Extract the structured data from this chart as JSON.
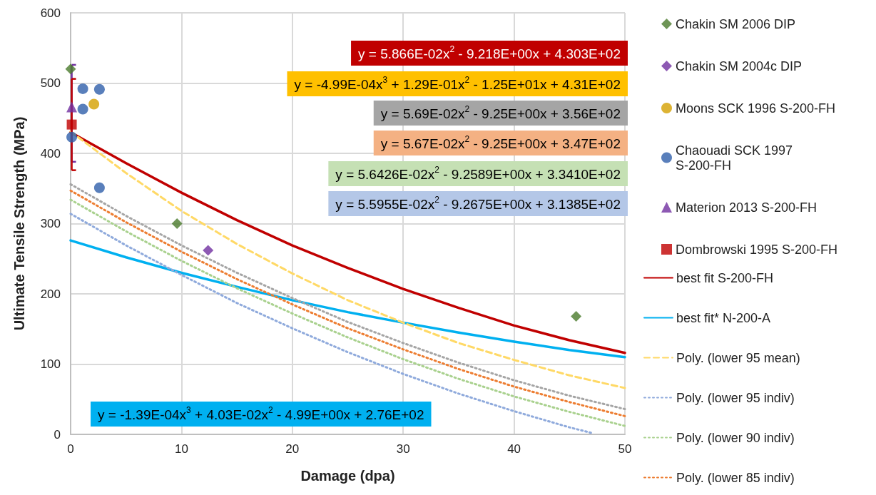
{
  "chart_data": {
    "type": "line",
    "xlabel": "Damage (dpa)",
    "ylabel": "Ultimate Tensile Strength (MPa)",
    "xlim": [
      0,
      50
    ],
    "xticks": [
      0,
      10,
      20,
      30,
      40,
      50
    ],
    "ylim": [
      0,
      600
    ],
    "yticks": [
      0,
      100,
      200,
      300,
      400,
      500,
      600
    ],
    "grid": true,
    "legend": "right",
    "series": [
      {
        "name": "Chakin SM 2006 DIP",
        "type": "scatter",
        "marker": "diamond",
        "color": "#4a7a2c",
        "x": [
          0,
          9.6,
          45.6
        ],
        "values": [
          520,
          300,
          168
        ]
      },
      {
        "name": "Chakin SM 2004c DIP",
        "type": "scatter",
        "marker": "diamond",
        "color": "#7030a0",
        "x": [
          12.4
        ],
        "values": [
          262
        ]
      },
      {
        "name": "Moons SCK 1996 S-200-FH",
        "type": "scatter",
        "marker": "circle",
        "color": "#d4a000",
        "x": [
          2.1
        ],
        "values": [
          470
        ]
      },
      {
        "name": "Chaouadi SCK 1997 S-200-FH",
        "type": "scatter",
        "marker": "circle",
        "color": "#2f5faa",
        "x": [
          1.1,
          2.6,
          1.1,
          0.1,
          2.6
        ],
        "values": [
          492,
          491,
          463,
          423,
          351
        ]
      },
      {
        "name": "Materion 2013 S-200-FH",
        "type": "scatter",
        "marker": "triangle",
        "color": "#7030a0",
        "x": [
          0.1
        ],
        "values": [
          466
        ],
        "errors": [
          [
            388,
            526
          ]
        ]
      },
      {
        "name": "Dombrowski 1995 S-200-FH",
        "type": "scatter",
        "marker": "square",
        "color": "#c00000",
        "x": [
          0.1
        ],
        "values": [
          441
        ],
        "errors": [
          [
            376,
            506
          ]
        ]
      },
      {
        "name": "best fit S-200-FH",
        "marker": "none",
        "line_style": "solid",
        "color": "#c00000",
        "x": [
          0,
          5,
          10,
          15,
          20,
          25,
          30,
          35,
          40,
          45,
          50
        ],
        "values": [
          430,
          386,
          344,
          305,
          269,
          237,
          207,
          180,
          155,
          134,
          116
        ]
      },
      {
        "name": "best fit* N-200-A",
        "marker": "none",
        "line_style": "solid",
        "color": "#00b0f0",
        "x": [
          0,
          5,
          10,
          15,
          20,
          25,
          30,
          35,
          40,
          45,
          50
        ],
        "values": [
          276,
          252,
          230,
          210,
          191,
          174,
          159,
          145,
          132,
          120,
          110
        ]
      },
      {
        "name": "Poly. (lower 95 mean)",
        "marker": "none",
        "line_style": "dashed",
        "color": "#ffd966",
        "x": [
          0,
          5,
          10,
          15,
          20,
          25,
          30,
          35,
          40,
          45,
          50
        ],
        "values": [
          431,
          372,
          318,
          271,
          229,
          191,
          159,
          130,
          106,
          84,
          66
        ]
      },
      {
        "name": "Poly. (lower 95 indiv)",
        "marker": "none",
        "line_style": "dotted",
        "color": "#8faadc",
        "x": [
          0,
          5,
          10,
          15,
          20,
          25,
          30,
          35,
          40,
          45,
          47
        ],
        "values": [
          314,
          269,
          227,
          187,
          151,
          117,
          86,
          58,
          33,
          10,
          2
        ]
      },
      {
        "name": "Poly. (lower 90 indiv)",
        "marker": "none",
        "line_style": "dotted",
        "color": "#a9d18e",
        "x": [
          0,
          5,
          10,
          15,
          20,
          25,
          30,
          35,
          40,
          45,
          50
        ],
        "values": [
          334,
          289,
          247,
          208,
          172,
          138,
          107,
          79,
          54,
          32,
          12
        ]
      },
      {
        "name": "Poly. (lower 85 indiv)",
        "marker": "none",
        "line_style": "dotted",
        "color": "#ed7d31",
        "x": [
          0,
          5,
          10,
          15,
          20,
          25,
          30,
          35,
          40,
          45,
          50
        ],
        "values": [
          347,
          302,
          260,
          221,
          185,
          151,
          121,
          93,
          68,
          46,
          26
        ]
      },
      {
        "marker": "none",
        "line_style": "dotted",
        "color": "#a5a5a5",
        "x": [
          0,
          5,
          10,
          15,
          20,
          25,
          30,
          35,
          40,
          45,
          50
        ],
        "values": [
          356,
          311,
          269,
          230,
          194,
          160,
          130,
          102,
          77,
          55,
          36
        ]
      }
    ],
    "annotations": [
      "y = 5.866E-02x$^{2}$ - 9.218E+00x + 4.303E+02",
      "y = -4.99E-04x$^{3}$ + 1.29E-01x$^{2}$ - 1.25E+01x + 4.31E+02",
      "y = 5.69E-02x$^{2}$ - 9.25E+00x + 3.56E+02",
      "y = 5.67E-02x$^{2}$ - 9.25E+00x + 3.47E+02",
      "y = 5.6426E-02x$^{2}$ - 9.2589E+00x + 3.3410E+02",
      "y = 5.5955E-02x$^{2}$ - 9.2675E+00x + 3.1385E+02",
      "y = -1.39E-04x$^{3}$ + 4.03E-02x$^{2}$ - 4.99E+00x + 2.76E+02"
    ]
  }
}
